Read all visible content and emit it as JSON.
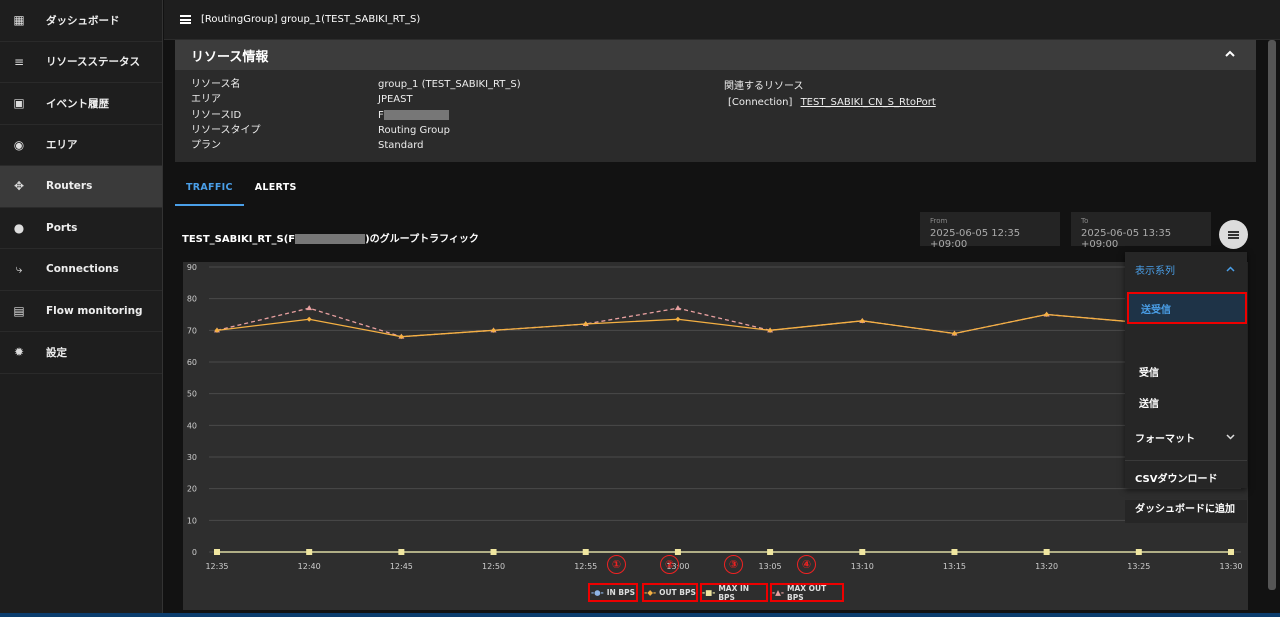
{
  "sidebar": {
    "items": [
      {
        "label": "ダッシュボード",
        "icon": "grid-icon"
      },
      {
        "label": "リソースステータス",
        "icon": "status-list-icon"
      },
      {
        "label": "イベント履歴",
        "icon": "calendar-icon"
      },
      {
        "label": "エリア",
        "icon": "globe-icon"
      },
      {
        "label": "Routers",
        "icon": "router-icon"
      },
      {
        "label": "Ports",
        "icon": "toggle-icon"
      },
      {
        "label": "Connections",
        "icon": "connection-icon"
      },
      {
        "label": "Flow monitoring",
        "icon": "document-icon"
      },
      {
        "label": "設定",
        "icon": "gear-icon"
      }
    ]
  },
  "header": {
    "title": "[RoutingGroup] group_1(TEST_SABIKI_RT_S)"
  },
  "info": {
    "title": "リソース情報",
    "labels": [
      "リソース名",
      "エリア",
      "リソースID",
      "リソースタイプ",
      "プラン"
    ],
    "values": [
      "group_1 (TEST_SABIKI_RT_S)",
      "JPEAST",
      "F",
      "Routing Group",
      "Standard"
    ],
    "related_title": "関連するリソース",
    "related_type": "[Connection]",
    "related_link": "TEST_SABIKI_CN_S_RtoPort"
  },
  "tabs": [
    "TRAFFIC",
    "ALERTS"
  ],
  "chart_header": {
    "title_prefix": "TEST_SABIKI_RT_S(F",
    "title_suffix": ")のグループトラフィック"
  },
  "range": {
    "from_label": "From",
    "from_value": "2025-06-05 12:35 +09:00",
    "to_label": "To",
    "to_value": "2025-06-05 13:35 +09:00"
  },
  "menu": {
    "section1": "表示系列",
    "options": [
      "送受信",
      "受信",
      "送信"
    ],
    "section2": "フォーマット",
    "csv": "CSVダウンロード",
    "dashboard": "ダッシュボードに追加"
  },
  "annotations": [
    "①",
    "②",
    "③",
    "④"
  ],
  "colors": {
    "in": "#8fb4e6",
    "out": "#f5b042",
    "max_in": "#f0e6a0",
    "max_out": "#e8a0a0",
    "accent": "#4a9fe8",
    "highlight": "#e00000"
  },
  "chart_data": {
    "type": "line",
    "categories": [
      "12:35",
      "12:40",
      "12:45",
      "12:50",
      "12:55",
      "13:00",
      "13:05",
      "13:10",
      "13:15",
      "13:20",
      "13:25",
      "13:30"
    ],
    "series": [
      {
        "name": "IN BPS",
        "values": [
          0,
          0,
          0,
          0,
          0,
          0,
          0,
          0,
          0,
          0,
          0,
          0
        ]
      },
      {
        "name": "OUT BPS",
        "values": [
          70,
          73.5,
          68,
          70,
          72,
          73.5,
          70,
          73,
          69,
          75,
          72.5,
          null
        ]
      },
      {
        "name": "MAX IN BPS",
        "values": [
          0,
          0,
          0,
          0,
          0,
          0,
          0,
          0,
          0,
          0,
          0,
          0
        ]
      },
      {
        "name": "MAX OUT BPS",
        "values": [
          70,
          77,
          68,
          70,
          72,
          77,
          70,
          73,
          69,
          75,
          72.5,
          null
        ]
      }
    ],
    "yticks": [
      0,
      10,
      20,
      30,
      40,
      50,
      60,
      70,
      80,
      90
    ],
    "ylim": [
      0,
      90
    ],
    "grid": true,
    "legend": "bottom"
  }
}
